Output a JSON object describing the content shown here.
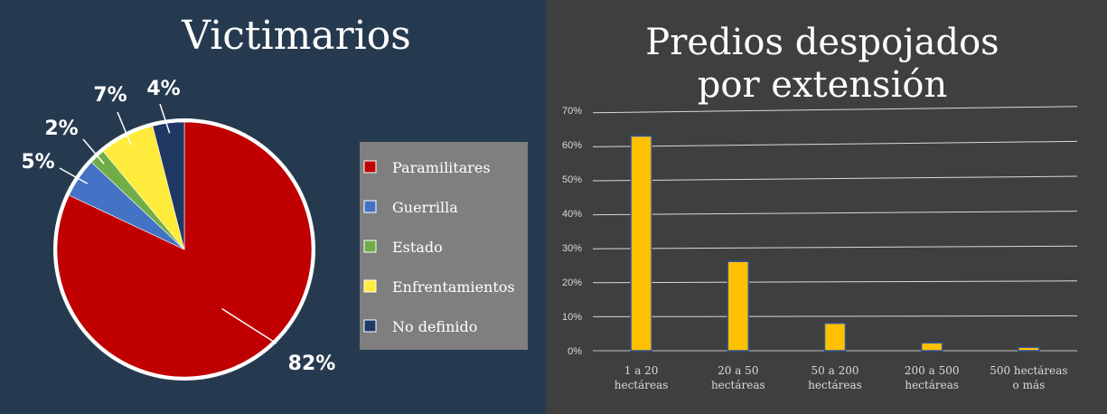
{
  "chart_data": [
    {
      "type": "pie",
      "title": "Victimarios",
      "categories": [
        "Paramilitares",
        "Guerrilla",
        "Estado",
        "Enfrentamientos",
        "No definido"
      ],
      "values": [
        82,
        5,
        2,
        7,
        4
      ],
      "labels": [
        "82%",
        "5%",
        "2%",
        "7%",
        "4%"
      ],
      "colors": [
        "#c00000",
        "#4472c4",
        "#70ad47",
        "#ffeb3b",
        "#1f3864"
      ],
      "legend": "right"
    },
    {
      "type": "bar",
      "title_lines": [
        "Predios despojados",
        "por extensión"
      ],
      "categories": [
        [
          "1 a 20",
          "hectáreas"
        ],
        [
          "20 a 50",
          "hectáreas"
        ],
        [
          "50 a 200",
          "hectáreas"
        ],
        [
          "200 a 500",
          "hectáreas"
        ],
        [
          "500 hectáreas",
          "o más"
        ]
      ],
      "values": [
        62.5,
        26,
        8,
        2.3,
        1
      ],
      "ylim": [
        0,
        70
      ],
      "yticks": [
        "0%",
        "10%",
        "20%",
        "30%",
        "40%",
        "50%",
        "60%",
        "70%"
      ],
      "grid": true,
      "bar_color": "#ffc000",
      "bar_edge_color": "#2f5597"
    }
  ]
}
